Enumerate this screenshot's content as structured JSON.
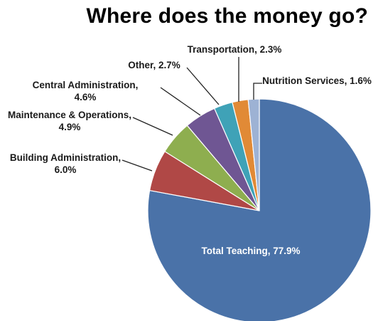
{
  "chart_data": {
    "type": "pie",
    "title": "Where does the money go?",
    "start_angle_deg": 0,
    "direction": "clockwise",
    "slices": [
      {
        "label": "Total Teaching",
        "value": 77.9,
        "display": "Total Teaching, 77.9%",
        "color": "#4a72a8"
      },
      {
        "label": "Building Administration",
        "value": 6.0,
        "display": [
          "Building Administration,",
          "6.0%"
        ],
        "color": "#b04846"
      },
      {
        "label": "Maintenance & Operations",
        "value": 4.9,
        "display": [
          "Maintenance & Operations,",
          "4.9%"
        ],
        "color": "#8eae4f"
      },
      {
        "label": "Central Administration",
        "value": 4.6,
        "display": [
          "Central Administration,",
          "4.6%"
        ],
        "color": "#6f5693"
      },
      {
        "label": "Other",
        "value": 2.7,
        "display": [
          "Other, 2.7%"
        ],
        "color": "#3fa2b7"
      },
      {
        "label": "Transportation",
        "value": 2.3,
        "display": [
          "Transportation, 2.3%"
        ],
        "color": "#e18a36"
      },
      {
        "label": "Nutrition Services",
        "value": 1.6,
        "display": [
          "Nutrition Services, 1.6%"
        ],
        "color": "#9db2d4"
      }
    ]
  }
}
